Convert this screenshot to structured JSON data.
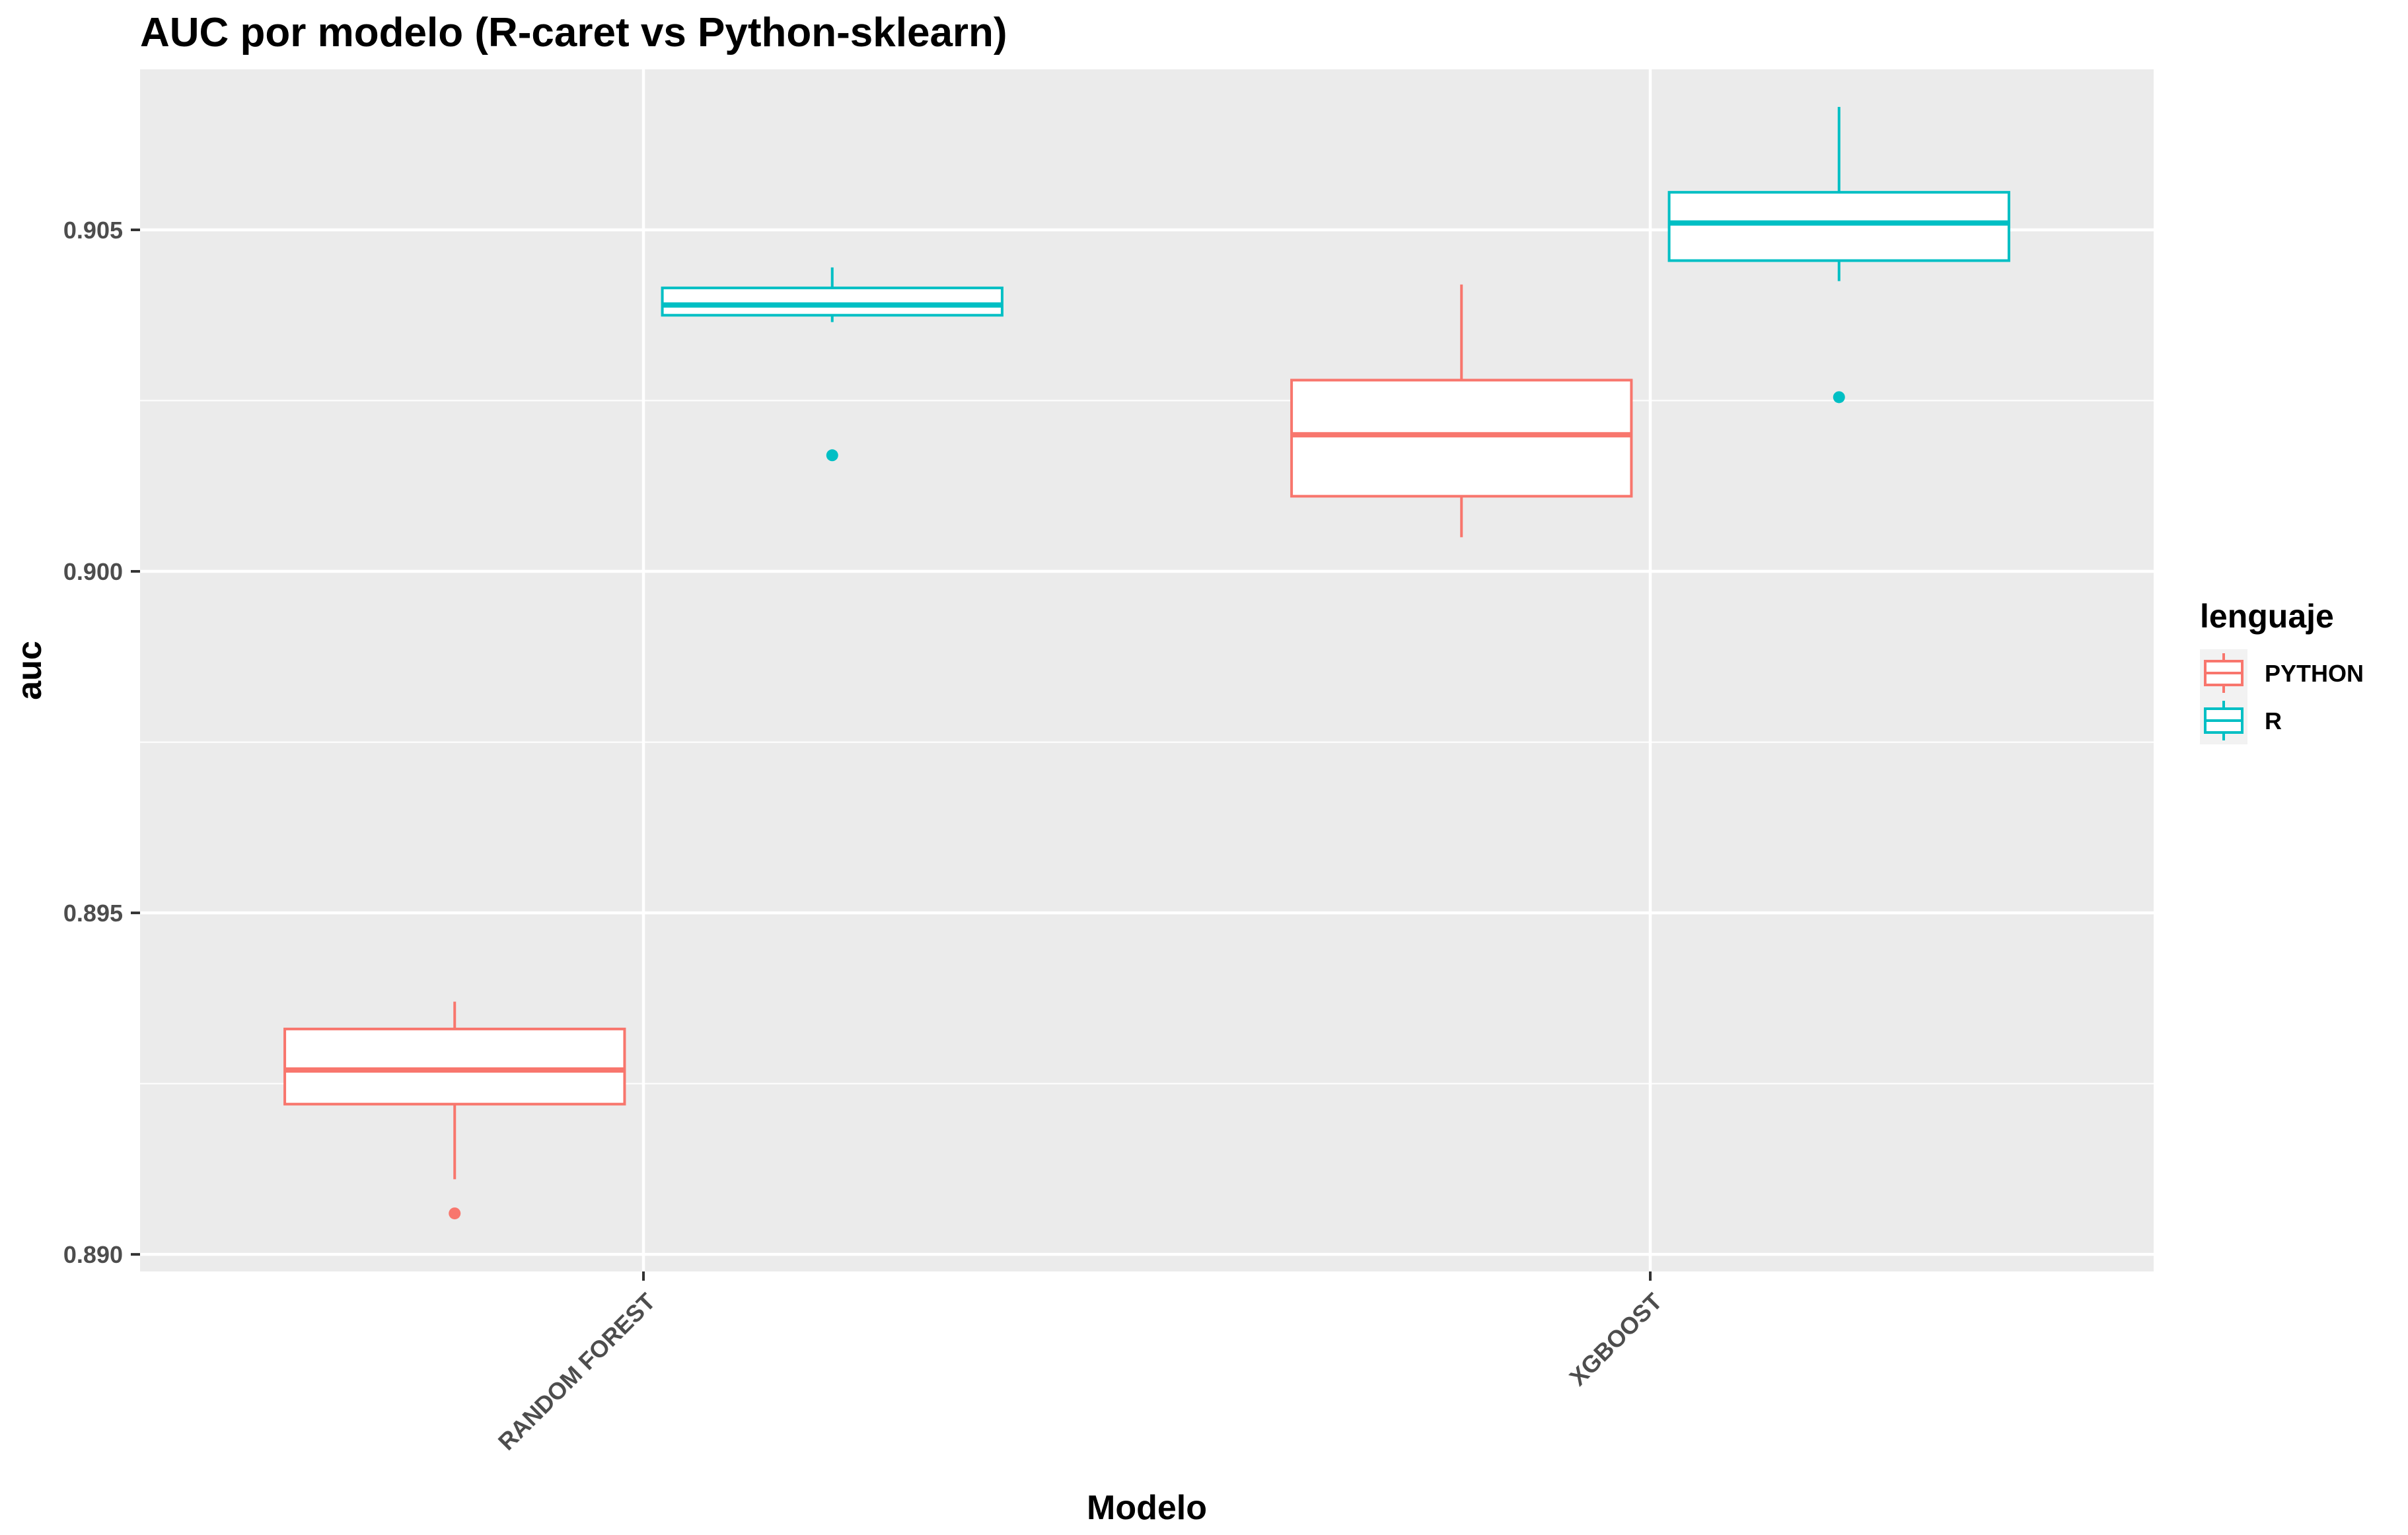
{
  "chart_data": {
    "type": "boxplot",
    "title": "AUC por modelo (R-caret vs Python-sklearn)",
    "xlabel": "Modelo",
    "ylabel": "auc",
    "categories": [
      "RANDOM FOREST",
      "XGBOOST"
    ],
    "ylim": [
      0.88975,
      0.90735
    ],
    "yticks": [
      0.89,
      0.895,
      0.9,
      0.905
    ],
    "ytick_labels": [
      "0.890",
      "0.895",
      "0.900",
      "0.905"
    ],
    "grid": true,
    "legend": {
      "title": "lenguaje",
      "position": "right"
    },
    "series": [
      {
        "name": "PYTHON",
        "color": "#F8766D",
        "boxes": [
          {
            "category": "RANDOM FOREST",
            "whisker_low": 0.8911,
            "q1": 0.8922,
            "median": 0.8927,
            "q3": 0.8933,
            "whisker_high": 0.8937,
            "outliers": [
              0.8906
            ]
          },
          {
            "category": "XGBOOST",
            "whisker_low": 0.9005,
            "q1": 0.9011,
            "median": 0.902,
            "q3": 0.9028,
            "whisker_high": 0.9042,
            "outliers": []
          }
        ]
      },
      {
        "name": "R",
        "color": "#00BFC4",
        "boxes": [
          {
            "category": "RANDOM FOREST",
            "whisker_low": 0.90365,
            "q1": 0.90375,
            "median": 0.9039,
            "q3": 0.90415,
            "whisker_high": 0.90445,
            "outliers": [
              0.9017
            ]
          },
          {
            "category": "XGBOOST",
            "whisker_low": 0.90425,
            "q1": 0.90455,
            "median": 0.9051,
            "q3": 0.90555,
            "whisker_high": 0.9068,
            "outliers": [
              0.90255
            ]
          }
        ]
      }
    ]
  }
}
